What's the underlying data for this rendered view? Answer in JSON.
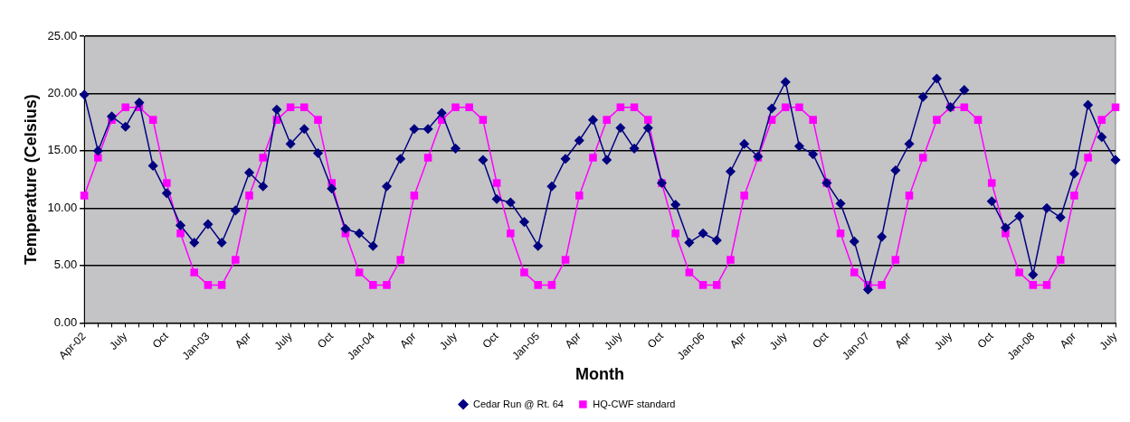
{
  "chart_data": {
    "type": "line",
    "xlabel": "Month",
    "ylabel": "Temperature (Celsius)",
    "categories": [
      "Apr-02",
      null,
      null,
      "July",
      null,
      null,
      "Oct",
      null,
      null,
      "Jan-03",
      null,
      null,
      "Apr",
      null,
      null,
      "July",
      null,
      null,
      "Oct",
      null,
      null,
      "Jan-04",
      null,
      null,
      "Apr",
      null,
      null,
      "July",
      null,
      null,
      "Oct",
      null,
      null,
      "Jan-05",
      null,
      null,
      "Apr",
      null,
      null,
      "July",
      null,
      null,
      "Oct",
      null,
      null,
      "Jan-06",
      null,
      null,
      "Apr",
      null,
      null,
      "July",
      null,
      null,
      "Oct",
      null,
      null,
      "Jan-07",
      null,
      null,
      "Apr",
      null,
      null,
      "July",
      null,
      null,
      "Oct",
      null,
      null,
      "Jan-08",
      null,
      null,
      "Apr",
      null,
      null,
      "July"
    ],
    "series": [
      {
        "name": "Cedar Run @ Rt. 64",
        "color": "#000080",
        "marker": "diamond",
        "values": [
          19.9,
          15.0,
          18.0,
          17.1,
          19.2,
          13.7,
          11.3,
          8.5,
          7.0,
          8.6,
          7.0,
          9.8,
          13.1,
          11.9,
          18.6,
          15.6,
          16.9,
          14.8,
          11.7,
          8.2,
          7.8,
          6.7,
          11.9,
          14.3,
          16.9,
          16.9,
          18.3,
          15.2,
          null,
          14.2,
          10.8,
          10.5,
          8.8,
          6.7,
          11.9,
          14.3,
          15.9,
          17.7,
          14.2,
          17.0,
          15.2,
          17.0,
          12.2,
          10.3,
          7.0,
          7.8,
          7.2,
          13.2,
          15.6,
          14.5,
          18.7,
          21.0,
          15.4,
          14.7,
          12.2,
          10.4,
          7.1,
          2.9,
          7.5,
          13.3,
          15.6,
          19.7,
          21.3,
          18.8,
          20.3,
          null,
          10.6,
          8.3,
          9.3,
          4.2,
          10.0,
          9.2,
          13.0,
          19.0,
          16.2,
          14.2
        ]
      },
      {
        "name": "HQ-CWF standard",
        "color": "#ff00ff",
        "marker": "square",
        "values": [
          11.1,
          14.4,
          17.7,
          18.8,
          18.8,
          17.7,
          12.2,
          7.8,
          4.4,
          3.3,
          3.3,
          5.5,
          11.1,
          14.4,
          17.7,
          18.8,
          18.8,
          17.7,
          12.2,
          7.8,
          4.4,
          3.3,
          3.3,
          5.5,
          11.1,
          14.4,
          17.7,
          18.8,
          18.8,
          17.7,
          12.2,
          7.8,
          4.4,
          3.3,
          3.3,
          5.5,
          11.1,
          14.4,
          17.7,
          18.8,
          18.8,
          17.7,
          12.2,
          7.8,
          4.4,
          3.3,
          3.3,
          5.5,
          11.1,
          14.4,
          17.7,
          18.8,
          18.8,
          17.7,
          12.2,
          7.8,
          4.4,
          3.3,
          3.3,
          5.5,
          11.1,
          14.4,
          17.7,
          18.8,
          18.8,
          17.7,
          12.2,
          7.8,
          4.4,
          3.3,
          3.3,
          5.5,
          11.1,
          14.4,
          17.7,
          18.8
        ]
      }
    ],
    "ylim": [
      0,
      25
    ],
    "yticks": [
      {
        "value": 0,
        "label": "0.00"
      },
      {
        "value": 5,
        "label": "5.00"
      },
      {
        "value": 10,
        "label": "10.00"
      },
      {
        "value": 15,
        "label": "15.00"
      },
      {
        "value": 20,
        "label": "20.00"
      },
      {
        "value": 25,
        "label": "25.00"
      }
    ],
    "grid": "y",
    "legend": "bottom",
    "line_style": "solid"
  }
}
